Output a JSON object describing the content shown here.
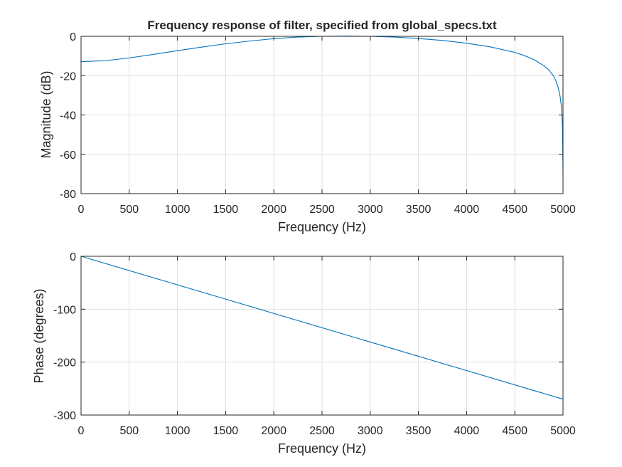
{
  "colors": {
    "line": "#0072BD",
    "grid": "#dfdfdf",
    "axis": "#262626",
    "background": "#ffffff"
  },
  "chart_data": [
    {
      "type": "line",
      "title": "Frequency response of filter, specified from global_specs.txt",
      "xlabel": "Frequency (Hz)",
      "ylabel": "Magnitude (dB)",
      "xlim": [
        0,
        5000
      ],
      "ylim": [
        -80,
        0
      ],
      "xticks": [
        0,
        500,
        1000,
        1500,
        2000,
        2500,
        3000,
        3500,
        4000,
        4500,
        5000
      ],
      "yticks": [
        0,
        -20,
        -40,
        -60,
        -80
      ],
      "grid": true,
      "series": [
        {
          "x": [
            0,
            250,
            500,
            750,
            1000,
            1250,
            1500,
            1750,
            2000,
            2250,
            2500,
            2750,
            3000,
            3250,
            3500,
            3750,
            4000,
            4250,
            4500,
            4600,
            4700,
            4800,
            4850,
            4900,
            4925,
            4950,
            4970,
            4985,
            4995,
            5000
          ],
          "y": [
            -12.9,
            -12.4,
            -11.0,
            -9.2,
            -7.3,
            -5.5,
            -3.8,
            -2.4,
            -1.2,
            -0.4,
            0.0,
            0.1,
            0.0,
            -0.4,
            -1.1,
            -2.1,
            -3.5,
            -5.4,
            -8.2,
            -9.8,
            -11.9,
            -14.9,
            -17.0,
            -20.0,
            -22.5,
            -26.0,
            -30.5,
            -36.5,
            -46.0,
            -68.0
          ]
        }
      ]
    },
    {
      "type": "line",
      "title": "",
      "xlabel": "Frequency (Hz)",
      "ylabel": "Phase (degrees)",
      "xlim": [
        0,
        5000
      ],
      "ylim": [
        -300,
        0
      ],
      "xticks": [
        0,
        500,
        1000,
        1500,
        2000,
        2500,
        3000,
        3500,
        4000,
        4500,
        5000
      ],
      "yticks": [
        0,
        -100,
        -200,
        -300
      ],
      "grid": true,
      "series": [
        {
          "x": [
            0,
            5000
          ],
          "y": [
            0,
            -270
          ]
        }
      ]
    }
  ]
}
